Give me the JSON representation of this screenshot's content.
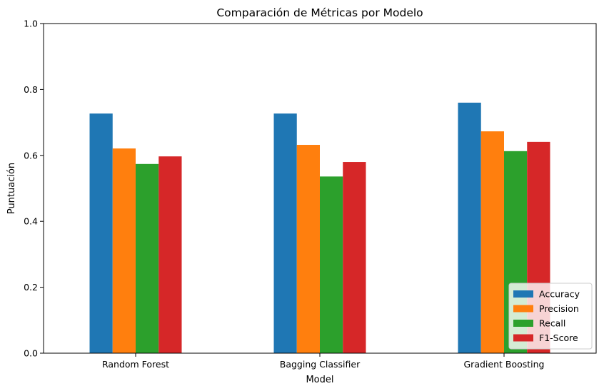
{
  "chart_data": {
    "type": "bar",
    "title": "Comparación de Métricas por Modelo",
    "xlabel": "Model",
    "ylabel": "Puntuación",
    "ylim": [
      0,
      1
    ],
    "yticks": [
      "0.0",
      "0.2",
      "0.4",
      "0.6",
      "0.8",
      "1.0"
    ],
    "categories": [
      "Random Forest",
      "Bagging Classifier",
      "Gradient Boosting"
    ],
    "series": [
      {
        "name": "Accuracy",
        "color": "#1f77b4",
        "values": [
          0.727,
          0.727,
          0.76
        ]
      },
      {
        "name": "Precision",
        "color": "#ff7f0e",
        "values": [
          0.621,
          0.632,
          0.673
        ]
      },
      {
        "name": "Recall",
        "color": "#2ca02c",
        "values": [
          0.574,
          0.536,
          0.613
        ]
      },
      {
        "name": "F1-Score",
        "color": "#d62728",
        "values": [
          0.597,
          0.58,
          0.641
        ]
      }
    ],
    "grid": false,
    "legend_position": "lower-right"
  }
}
